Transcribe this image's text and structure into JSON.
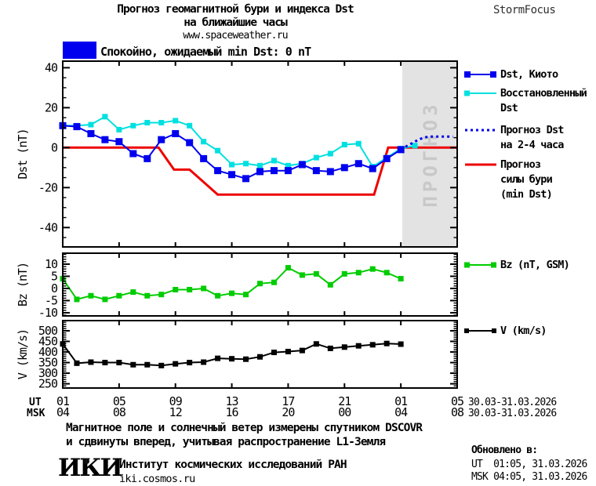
{
  "header": {
    "title_line1": "Прогноз геомагнитной бури и индекса Dst",
    "title_line2": "на ближайшие часы",
    "title_line3": "www.spaceweather.ru",
    "brand": "StormFocus"
  },
  "status_banner": {
    "swatch_color": "#0000ee",
    "text": "Спокойно, ожидаемый min Dst: 0 nT"
  },
  "forecast_band": {
    "label": "ПРОГНОЗ",
    "start_hour": 25.1,
    "color": "#e3e3e3",
    "label_color": "#c8c8c8"
  },
  "xaxis": {
    "ut_row_label": "UT",
    "msk_row_label": "MSK",
    "tick_hours": [
      1,
      5,
      9,
      13,
      17,
      21,
      25,
      29
    ],
    "ut_ticks": [
      "01",
      "05",
      "09",
      "13",
      "17",
      "21",
      "01",
      "05"
    ],
    "msk_ticks": [
      "04",
      "08",
      "12",
      "16",
      "20",
      "00",
      "04",
      "08"
    ],
    "date_note": "30.03-31.03.2026"
  },
  "chart_data": [
    {
      "type": "line",
      "panel": "dst",
      "ylabel": "Dst (nT)",
      "ylim": [
        -49.7,
        43.3
      ],
      "yticks": [
        40,
        20,
        0,
        -20,
        -40
      ],
      "y_minor_step": 5,
      "x_range_hours": [
        1,
        29
      ],
      "grid": false,
      "series": [
        {
          "name": "Прогноз силы бури (min Dst)",
          "color": "#ee0000",
          "line_width": 3,
          "x": [
            1,
            7.8,
            8.9,
            10,
            12,
            23.1,
            24.1,
            29
          ],
          "y": [
            0,
            0,
            -11,
            -11,
            -23.5,
            -23.5,
            0,
            0
          ]
        },
        {
          "name": "Восстановленный Dst",
          "color": "#00e0e0",
          "line_width": 2,
          "marker_size": 7,
          "x": [
            1,
            2,
            3,
            4,
            5,
            6,
            7,
            8,
            9,
            10,
            11,
            12,
            13,
            14,
            15,
            16,
            17,
            18,
            19,
            20,
            21,
            22,
            23,
            24,
            25,
            26
          ],
          "y": [
            11,
            11,
            11.5,
            15.5,
            9,
            11,
            12.5,
            12.5,
            13.5,
            11,
            3,
            -1.5,
            -8.5,
            -8,
            -9,
            -6.5,
            -9,
            -8,
            -5,
            -3,
            1.5,
            2,
            -9.5,
            -5,
            -0.5,
            1
          ]
        },
        {
          "name": "Dst, Киото",
          "color": "#0000ee",
          "line_width": 2,
          "marker_size": 9,
          "x": [
            1,
            2,
            3,
            4,
            5,
            6,
            7,
            8,
            9,
            10,
            11,
            12,
            13,
            14,
            15,
            16,
            17,
            18,
            19,
            20,
            21,
            22,
            23,
            24,
            25
          ],
          "y": [
            11,
            10.5,
            7,
            4,
            3,
            -3,
            -5.5,
            4,
            7,
            2.5,
            -5.5,
            -11.5,
            -13.5,
            -15.5,
            -12,
            -11.5,
            -11.5,
            -8.5,
            -11.5,
            -12,
            -10,
            -8,
            -10.5,
            -5.5,
            -1
          ]
        },
        {
          "name": "Прогноз Dst на 2-4 часа",
          "color": "#0000ee",
          "line_width": 3,
          "style": "dotted",
          "x": [
            25,
            25.4,
            25.8,
            26.2,
            26.6,
            27,
            28.7
          ],
          "y": [
            -1,
            0.7,
            2.2,
            3.8,
            5,
            5.5,
            5.5
          ]
        }
      ]
    },
    {
      "type": "line",
      "panel": "bz",
      "ylabel": "Bz (nT)",
      "ylim": [
        -11.3,
        14.5
      ],
      "yticks": [
        10,
        5,
        0,
        -5,
        -10
      ],
      "y_minor_step": 1,
      "x_range_hours": [
        1,
        29
      ],
      "grid": false,
      "series": [
        {
          "name": "Bz (nT, GSM)",
          "color": "#00cc00",
          "line_width": 2,
          "marker_size": 7,
          "x": [
            1,
            2,
            3,
            4,
            5,
            6,
            7,
            8,
            9,
            10,
            11,
            12,
            13,
            14,
            15,
            16,
            17,
            18,
            19,
            20,
            21,
            22,
            23,
            24,
            25
          ],
          "y": [
            4,
            -4.5,
            -3,
            -4.5,
            -3,
            -1.5,
            -3,
            -2.5,
            -0.5,
            -0.5,
            0,
            -3,
            -2,
            -2.5,
            2,
            2.5,
            8.5,
            5.5,
            6,
            1.5,
            6,
            6.5,
            8,
            6.5,
            4
          ]
        }
      ]
    },
    {
      "type": "line",
      "panel": "v",
      "ylabel": "V (km/s)",
      "ylim": [
        230,
        548
      ],
      "yticks": [
        500,
        450,
        400,
        350,
        300,
        250
      ],
      "y_minor_step": 10,
      "x_range_hours": [
        1,
        29
      ],
      "grid": false,
      "series": [
        {
          "name": "V (km/s)",
          "color": "#000000",
          "line_width": 2,
          "marker_size": 7,
          "x": [
            1,
            2,
            3,
            4,
            5,
            6,
            7,
            8,
            9,
            10,
            11,
            12,
            13,
            14,
            15,
            16,
            17,
            18,
            19,
            20,
            21,
            22,
            23,
            24,
            25
          ],
          "y": [
            438,
            347,
            352,
            350,
            350,
            340,
            340,
            336,
            344,
            350,
            352,
            370,
            368,
            366,
            377,
            398,
            402,
            407,
            438,
            417,
            423,
            429,
            434,
            440,
            437
          ]
        }
      ]
    }
  ],
  "legend": {
    "dst_kyoto": "Dst, Киото",
    "restored": "Восстановленный\nDst",
    "forecast": "Прогноз Dst\nна 2-4 часа",
    "storm": "Прогноз\nсилы бури\n(min Dst)",
    "bz": "Bz (nT, GSM)",
    "v": "V (km/s)"
  },
  "footer": {
    "note_line1": "Магнитное поле и солнечный ветер измерены спутником DSCOVR",
    "note_line2": "и сдвинуты вперед, учитывая распространение L1-Земля",
    "logo": "ИКИ",
    "institute": "Институт космических исследований РАН",
    "institute_url": "iki.cosmos.ru",
    "updated_label": "Обновлено в:",
    "updated_ut": "UT  01:05, 31.03.2026",
    "updated_msk": "MSK 04:05, 31.03.2026"
  },
  "colors": {
    "dst_kyoto": "#0000ee",
    "dst_restored": "#00e0e0",
    "dst_forecast_dotted": "#0000ee",
    "storm_forecast": "#ee0000",
    "bz": "#00cc00",
    "v": "#000000",
    "forecast_band": "#e3e3e3"
  }
}
